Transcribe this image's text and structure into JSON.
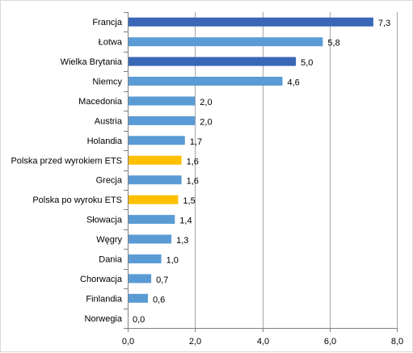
{
  "chart_data": {
    "type": "bar",
    "orientation": "horizontal",
    "categories": [
      "Francja",
      "Łotwa",
      "Wielka Brytania",
      "Niemcy",
      "Macedonia",
      "Austria",
      "Holandia",
      "Polska przed wyrokiem ETS",
      "Grecja",
      "Polska po wyroku ETS",
      "Słowacja",
      "Węgry",
      "Dania",
      "Chorwacja",
      "Finlandia",
      "Norwegia"
    ],
    "values": [
      7.3,
      5.8,
      5.0,
      4.6,
      2.0,
      2.0,
      1.7,
      1.6,
      1.6,
      1.5,
      1.4,
      1.3,
      1.0,
      0.7,
      0.6,
      0.0
    ],
    "value_labels": [
      "7,3",
      "5,8",
      "5,0",
      "4,6",
      "2,0",
      "2,0",
      "1,7",
      "1,6",
      "1,6",
      "1,5",
      "1,4",
      "1,3",
      "1,0",
      "0,7",
      "0,6",
      "0,0"
    ],
    "bar_colors": [
      "#3A67B6",
      "#5B9BD5",
      "#3A67B6",
      "#5B9BD5",
      "#5B9BD5",
      "#5B9BD5",
      "#5B9BD5",
      "#FFC000",
      "#5B9BD5",
      "#FFC000",
      "#5B9BD5",
      "#5B9BD5",
      "#5B9BD5",
      "#5B9BD5",
      "#5B9BD5",
      "#5B9BD5"
    ],
    "xlim": [
      0,
      8
    ],
    "xticks": [
      0,
      2,
      4,
      6,
      8
    ],
    "xtick_labels": [
      "0,0",
      "2,0",
      "4,0",
      "6,0",
      "8,0"
    ],
    "grid": true,
    "legend": "none",
    "title": "",
    "xlabel": "",
    "ylabel": ""
  },
  "colors": {
    "dark_blue": "#3A67B6",
    "light_blue": "#5B9BD5",
    "highlight": "#FFC000",
    "gridline": "#a6a6a6"
  }
}
